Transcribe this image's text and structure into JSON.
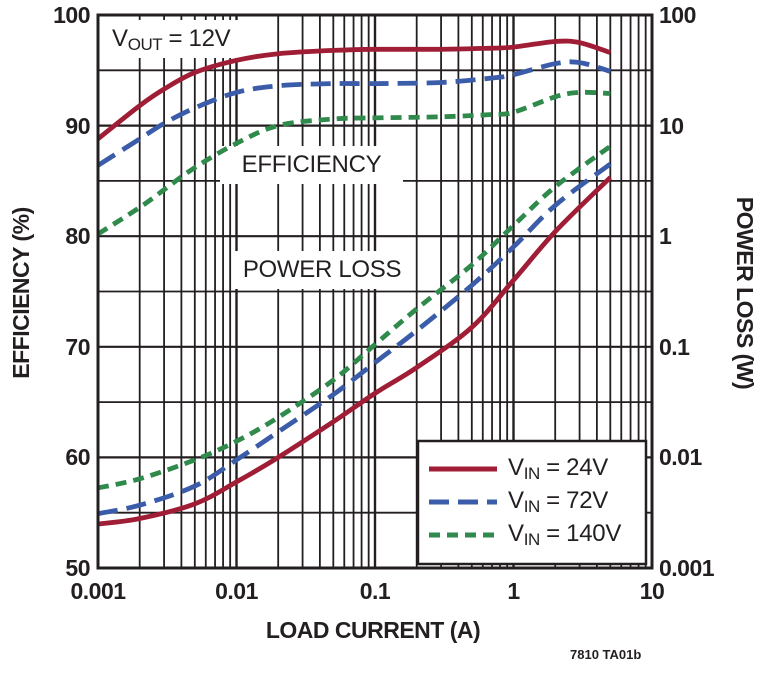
{
  "caption": "7810 TA01b",
  "annotations": {
    "vout": {
      "pre": "V",
      "sub": "OUT",
      "post": " = 12V"
    },
    "efficiency": "EFFICIENCY",
    "power_loss": "POWER LOSS"
  },
  "legend": {
    "position": "bottom-right",
    "items": [
      {
        "pre": "V",
        "sub": "IN",
        "post": " = 24V"
      },
      {
        "pre": "V",
        "sub": "IN",
        "post": " = 72V"
      },
      {
        "pre": "V",
        "sub": "IN",
        "post": " = 140V"
      }
    ]
  },
  "chart_data": {
    "type": "line",
    "title": "",
    "x_axis": {
      "label": "LOAD CURRENT (A)",
      "scale": "log",
      "range": [
        0.001,
        10
      ],
      "ticks": [
        "0.001",
        "0.01",
        "0.1",
        "1",
        "10"
      ]
    },
    "y_left": {
      "label": "EFFICIENCY (%)",
      "scale": "linear",
      "range": [
        50,
        100
      ],
      "ticks": [
        "100",
        "90",
        "80",
        "70",
        "60",
        "50"
      ]
    },
    "y_right": {
      "label": "POWER LOSS (W)",
      "scale": "log",
      "range": [
        100,
        0.001
      ],
      "ticks": [
        "100",
        "10",
        "1",
        "0.1",
        "0.01",
        "0.001"
      ]
    },
    "grid": {
      "x_minor": "log decades 2-9",
      "y_minor_step_percent": 5,
      "grid_on": true
    },
    "colors": {
      "vin_24": "#A01D36",
      "vin_72": "#3B5CA8",
      "vin_140": "#2F8A4C",
      "grid": "#231F20"
    },
    "series": [
      {
        "name": "VIN = 24V",
        "color": "#A01D36",
        "dash": "solid",
        "efficiency_pct_vs_A": [
          [
            0.001,
            88.8
          ],
          [
            0.002,
            91.8
          ],
          [
            0.003,
            93.3
          ],
          [
            0.005,
            94.8
          ],
          [
            0.01,
            95.9
          ],
          [
            0.02,
            96.5
          ],
          [
            0.05,
            96.8
          ],
          [
            0.1,
            96.9
          ],
          [
            0.3,
            96.9
          ],
          [
            0.7,
            97.0
          ],
          [
            1,
            97.1
          ],
          [
            2,
            97.6
          ],
          [
            3,
            97.5
          ],
          [
            5,
            96.6
          ]
        ],
        "power_loss_W_vs_A": [
          [
            0.001,
            0.0025
          ],
          [
            0.002,
            0.0028
          ],
          [
            0.005,
            0.0038
          ],
          [
            0.01,
            0.006
          ],
          [
            0.02,
            0.01
          ],
          [
            0.05,
            0.021
          ],
          [
            0.1,
            0.038
          ],
          [
            0.2,
            0.065
          ],
          [
            0.5,
            0.15
          ],
          [
            1,
            0.4
          ],
          [
            2,
            1.1
          ],
          [
            5,
            3.4
          ]
        ]
      },
      {
        "name": "VIN = 72V",
        "color": "#3B5CA8",
        "dash": "20 9",
        "efficiency_pct_vs_A": [
          [
            0.001,
            86.4
          ],
          [
            0.002,
            88.8
          ],
          [
            0.003,
            90.2
          ],
          [
            0.005,
            91.6
          ],
          [
            0.01,
            93.0
          ],
          [
            0.02,
            93.6
          ],
          [
            0.05,
            93.8
          ],
          [
            0.1,
            93.8
          ],
          [
            0.3,
            93.9
          ],
          [
            0.7,
            94.3
          ],
          [
            1,
            94.6
          ],
          [
            2,
            95.6
          ],
          [
            3,
            95.7
          ],
          [
            5,
            94.9
          ]
        ],
        "power_loss_W_vs_A": [
          [
            0.001,
            0.0031
          ],
          [
            0.002,
            0.0037
          ],
          [
            0.005,
            0.0055
          ],
          [
            0.01,
            0.0095
          ],
          [
            0.02,
            0.017
          ],
          [
            0.05,
            0.037
          ],
          [
            0.1,
            0.072
          ],
          [
            0.2,
            0.14
          ],
          [
            0.5,
            0.36
          ],
          [
            1,
            0.8
          ],
          [
            2,
            1.9
          ],
          [
            5,
            4.5
          ]
        ]
      },
      {
        "name": "VIN = 140V",
        "color": "#2F8A4C",
        "dash": "11 7",
        "efficiency_pct_vs_A": [
          [
            0.001,
            80.2
          ],
          [
            0.002,
            82.6
          ],
          [
            0.003,
            84.2
          ],
          [
            0.005,
            86.2
          ],
          [
            0.01,
            88.4
          ],
          [
            0.02,
            90.0
          ],
          [
            0.05,
            90.6
          ],
          [
            0.1,
            90.7
          ],
          [
            0.3,
            90.8
          ],
          [
            0.7,
            91.0
          ],
          [
            1,
            91.2
          ],
          [
            2,
            92.6
          ],
          [
            3,
            93.0
          ],
          [
            5,
            92.9
          ]
        ],
        "power_loss_W_vs_A": [
          [
            0.001,
            0.0053
          ],
          [
            0.002,
            0.0064
          ],
          [
            0.005,
            0.0095
          ],
          [
            0.01,
            0.014
          ],
          [
            0.02,
            0.023
          ],
          [
            0.05,
            0.05
          ],
          [
            0.1,
            0.105
          ],
          [
            0.2,
            0.22
          ],
          [
            0.5,
            0.55
          ],
          [
            1,
            1.25
          ],
          [
            2,
            2.8
          ],
          [
            5,
            6.5
          ]
        ]
      }
    ]
  }
}
